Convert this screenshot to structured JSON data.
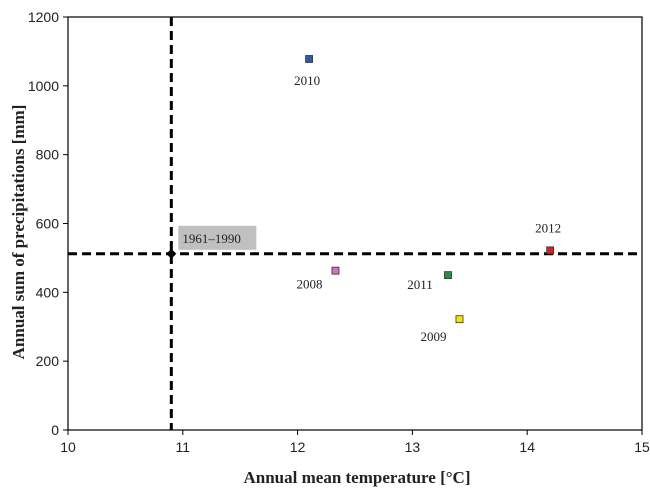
{
  "chart_data": {
    "type": "scatter",
    "xlabel": "Annual mean temperature [°C]",
    "ylabel": "Annual sum of precipitations [mm]",
    "xlim": [
      10,
      15
    ],
    "ylim": [
      0,
      1200
    ],
    "x_ticks": [
      10,
      11,
      12,
      13,
      14,
      15
    ],
    "y_ticks": [
      0,
      200,
      400,
      600,
      800,
      1000,
      1200
    ],
    "grid": false,
    "reference": {
      "label": "1961–1990",
      "x": 10.9,
      "y": 512,
      "line_style": "dashed",
      "marker": "diamond",
      "color": "#000000"
    },
    "points": [
      {
        "label": "2010",
        "x": 12.1,
        "y": 1078,
        "color": "#2a5ca8"
      },
      {
        "label": "2012",
        "x": 14.2,
        "y": 522,
        "color": "#d62020"
      },
      {
        "label": "2008",
        "x": 12.33,
        "y": 463,
        "color": "#d670c0"
      },
      {
        "label": "2011",
        "x": 13.31,
        "y": 450,
        "color": "#2e8b47"
      },
      {
        "label": "2009",
        "x": 13.41,
        "y": 322,
        "color": "#f2e600"
      }
    ]
  }
}
